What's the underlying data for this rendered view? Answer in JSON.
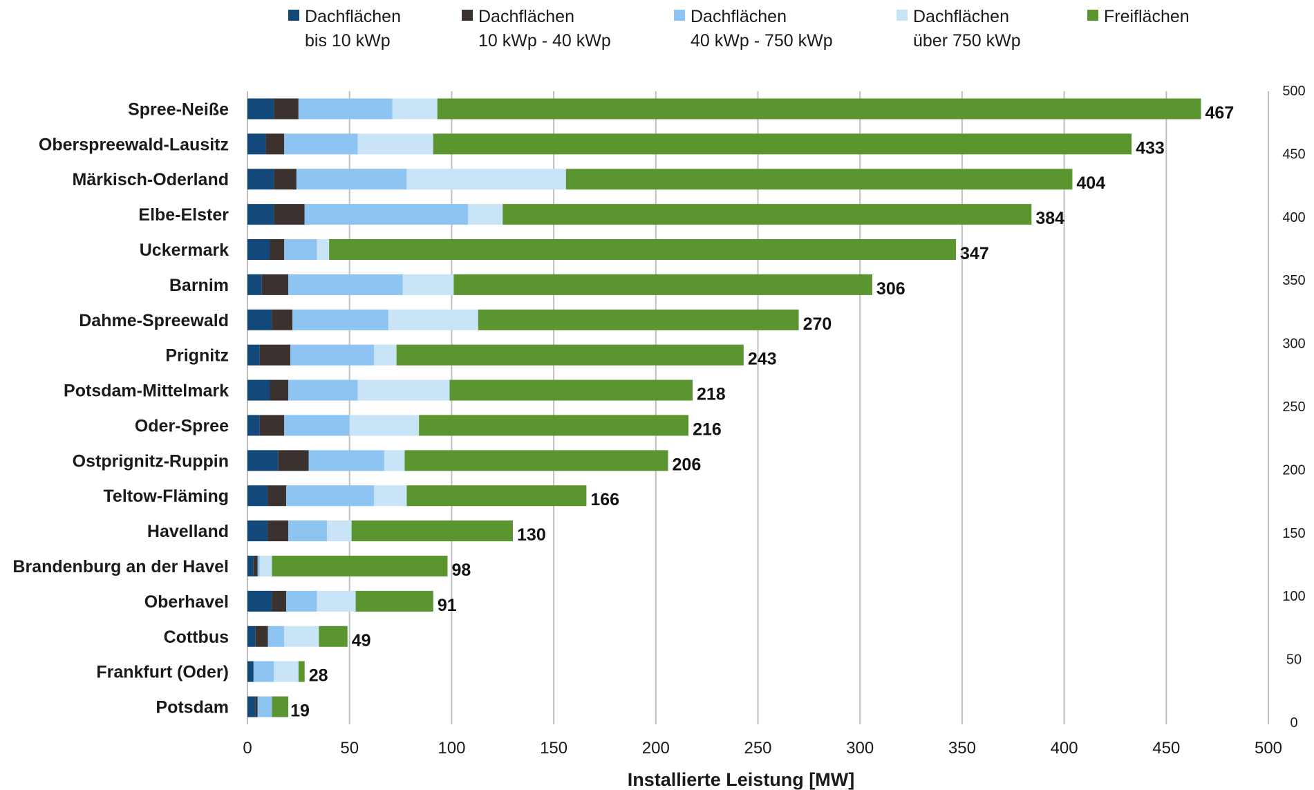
{
  "chart_data": {
    "type": "bar",
    "orientation": "horizontal",
    "stacked": true,
    "title": "",
    "xlabel": "Installierte Leistung [MW]",
    "ylabel": "",
    "xlim": [
      0,
      500
    ],
    "x_ticks": [
      "0",
      "50",
      "100",
      "150",
      "200",
      "250",
      "300",
      "350",
      "400",
      "450",
      "500"
    ],
    "secondary_axis_ticks": [
      "0",
      "50",
      "100",
      "150",
      "200",
      "250",
      "300",
      "350",
      "400",
      "450",
      "500"
    ],
    "grid": "vertical major gridlines",
    "legend_position": "top",
    "categories": [
      "Spree-Neiße",
      "Oberspreewald-Lausitz",
      "Märkisch-Oderland",
      "Elbe-Elster",
      "Uckermark",
      "Barnim",
      "Dahme-Spreewald",
      "Prignitz",
      "Potsdam-Mittelmark",
      "Oder-Spree",
      "Ostprignitz-Ruppin",
      "Teltow-Fläming",
      "Havelland",
      "Brandenburg an der Havel",
      "Oberhavel",
      "Cottbus",
      "Frankfurt (Oder)",
      "Potsdam"
    ],
    "totals": [
      "467",
      "433",
      "404",
      "384",
      "347",
      "306",
      "270",
      "243",
      "218",
      "216",
      "206",
      "166",
      "130",
      "98",
      "91",
      "49",
      "28",
      "19"
    ],
    "series": [
      {
        "name_line1": "Dachflächen",
        "name_line2": "bis 10 kWp",
        "color": "#12487a",
        "values": [
          13,
          9,
          13,
          13,
          11,
          7,
          12,
          6,
          11,
          6,
          15,
          10,
          10,
          3,
          12,
          4,
          3,
          4
        ]
      },
      {
        "name_line1": "Dachflächen",
        "name_line2": "10 kWp - 40 kWp",
        "color": "#3b3230",
        "values": [
          12,
          9,
          11,
          15,
          7,
          13,
          10,
          15,
          9,
          12,
          15,
          9,
          10,
          2,
          7,
          6,
          0,
          1
        ]
      },
      {
        "name_line1": "Dachflächen",
        "name_line2": "40 kWp - 750 kWp",
        "color": "#8ec4f1",
        "values": [
          46,
          36,
          54,
          80,
          16,
          56,
          47,
          41,
          34,
          32,
          37,
          43,
          19,
          1,
          15,
          8,
          10,
          7
        ]
      },
      {
        "name_line1": "Dachflächen",
        "name_line2": "über 750 kWp",
        "color": "#c9e4f7",
        "values": [
          22,
          37,
          78,
          17,
          6,
          25,
          44,
          11,
          45,
          34,
          10,
          16,
          12,
          6,
          19,
          17,
          12,
          0
        ]
      },
      {
        "name_line1": "Freiflächen",
        "name_line2": "",
        "color": "#5a9530",
        "values": [
          374,
          342,
          248,
          259,
          307,
          205,
          157,
          170,
          119,
          132,
          129,
          88,
          79,
          86,
          38,
          14,
          3,
          8
        ]
      }
    ]
  }
}
